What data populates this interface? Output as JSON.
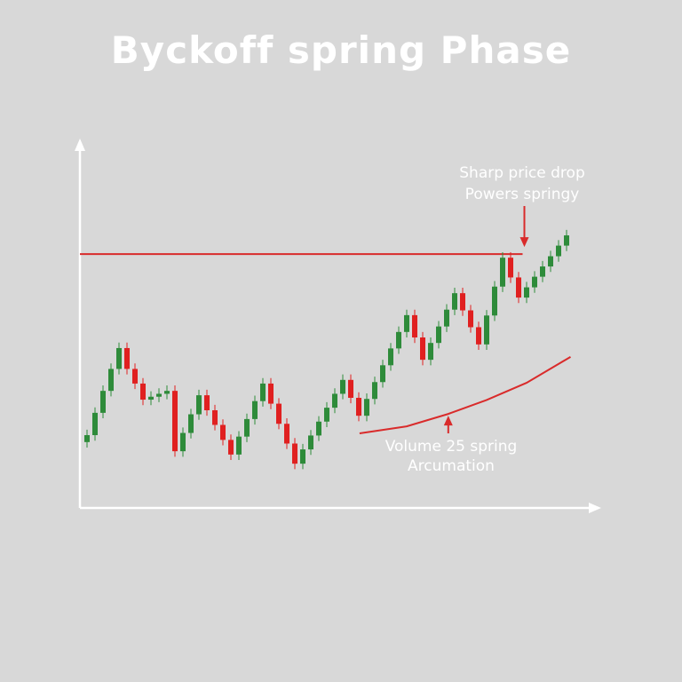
{
  "chart_data": {
    "type": "candlestick",
    "title": "Byckoff spring Phase",
    "xlabel": "",
    "ylabel": "",
    "ylim": [
      0,
      100
    ],
    "xlim": [
      -1,
      64
    ],
    "grid": false,
    "colors": {
      "up": "#2e8b3a",
      "down": "#e02020",
      "line": "#d92b2b",
      "axis": "#ffffff",
      "background": "#d8d8d8"
    },
    "open": [
      18.0,
      19.9,
      26,
      32,
      38,
      43.7,
      38,
      34,
      29.6,
      30.4,
      31.2,
      32.0,
      15.5,
      20.5,
      25.6,
      30.8,
      26.7,
      22.7,
      18.6,
      14.6,
      19.5,
      24.3,
      29.2,
      34.0,
      28.5,
      23.0,
      17.6,
      12.1,
      16.0,
      19.8,
      23.6,
      27.4,
      31.2,
      35.0,
      30.1,
      25.2,
      29.8,
      34.4,
      39.0,
      43.6,
      48.1,
      52.7,
      46.6,
      40.5,
      45.1,
      49.6,
      54.2,
      58.7,
      54.0,
      49.4,
      44.7,
      52.6,
      60.5,
      68.4,
      63.0,
      57.5,
      60.3,
      63.2,
      66.0,
      68.8,
      71.7
    ],
    "close": [
      19.9,
      26,
      32,
      38,
      43.7,
      38,
      34,
      29.6,
      30.4,
      31.2,
      32.0,
      15.5,
      20.5,
      25.6,
      30.8,
      26.7,
      22.7,
      18.6,
      14.6,
      19.5,
      24.3,
      29.2,
      34.0,
      28.5,
      23.0,
      17.6,
      12.1,
      16.0,
      19.8,
      23.6,
      27.4,
      31.2,
      35.0,
      30.1,
      25.2,
      29.8,
      34.4,
      39.0,
      43.6,
      48.1,
      52.7,
      46.6,
      40.5,
      45.1,
      49.6,
      54.2,
      58.7,
      54.0,
      49.4,
      44.7,
      52.6,
      60.5,
      68.4,
      63.0,
      57.5,
      60.3,
      63.2,
      66.0,
      68.8,
      71.7,
      74.5
    ],
    "resistance": {
      "level": 69.4,
      "x_end": 54.5
    },
    "volume_curve": [
      [
        34.1,
        20.4
      ],
      [
        40,
        22.3
      ],
      [
        45.2,
        25.7
      ],
      [
        50,
        29.5
      ],
      [
        55,
        34.2
      ],
      [
        60.5,
        41.3
      ]
    ],
    "annotations": [
      {
        "id": "spring",
        "lines": [
          "Sharp price drop",
          "Powers springy"
        ],
        "points_to": [
          54.5,
          69.4
        ]
      },
      {
        "id": "volume",
        "lines": [
          "Volume 25 spring",
          "Arcumation"
        ],
        "points_to": [
          45.2,
          25.7
        ]
      }
    ]
  }
}
